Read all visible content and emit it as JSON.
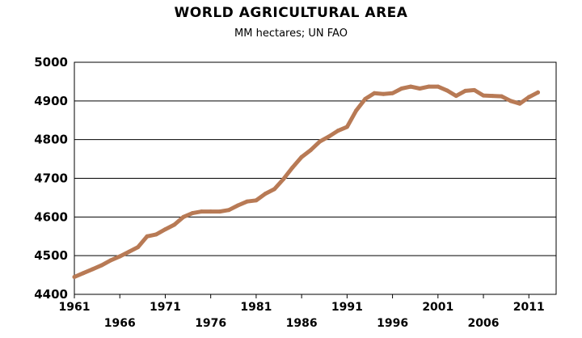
{
  "chart_data": {
    "type": "line",
    "title": "WORLD AGRICULTURAL AREA",
    "subtitle": "MM hectares;  UN FAO",
    "xlabel": "",
    "ylabel": "",
    "xlim": [
      1961,
      2014
    ],
    "ylim": [
      4400,
      5000
    ],
    "y_ticks": [
      "4400",
      "4500",
      "4600",
      "4700",
      "4800",
      "4900",
      "5000"
    ],
    "x_ticks_upper": [
      "1961",
      "1971",
      "1981",
      "1991",
      "2001",
      "2011"
    ],
    "x_ticks_lower": [
      "1966",
      "1976",
      "1986",
      "1996",
      "2006"
    ],
    "grid": "horizontal",
    "line_color": "#B87A55",
    "series": [
      {
        "x": [
          1961,
          1962,
          1963,
          1964,
          1965,
          1966,
          1967,
          1968,
          1969,
          1970,
          1971,
          1972,
          1973,
          1974,
          1975,
          1976,
          1977,
          1978,
          1979,
          1980,
          1981,
          1982,
          1983,
          1984,
          1985,
          1986,
          1987,
          1988,
          1989,
          1990,
          1991,
          1992,
          1993,
          1994,
          1995,
          1996,
          1997,
          1998,
          1999,
          2000,
          2001,
          2002,
          2003,
          2004,
          2005,
          2006,
          2007,
          2008,
          2009,
          2010,
          2011,
          2012
        ],
        "values": [
          4445,
          4455,
          4465,
          4475,
          4488,
          4498,
          4510,
          4522,
          4550,
          4555,
          4568,
          4580,
          4600,
          4610,
          4614,
          4614,
          4614,
          4618,
          4630,
          4640,
          4643,
          4660,
          4672,
          4698,
          4728,
          4755,
          4773,
          4795,
          4808,
          4823,
          4833,
          4875,
          4905,
          4920,
          4918,
          4920,
          4932,
          4937,
          4932,
          4937,
          4937,
          4927,
          4913,
          4926,
          4928,
          4914,
          4913,
          4912,
          4900,
          4893,
          4910,
          4922
        ]
      }
    ]
  }
}
